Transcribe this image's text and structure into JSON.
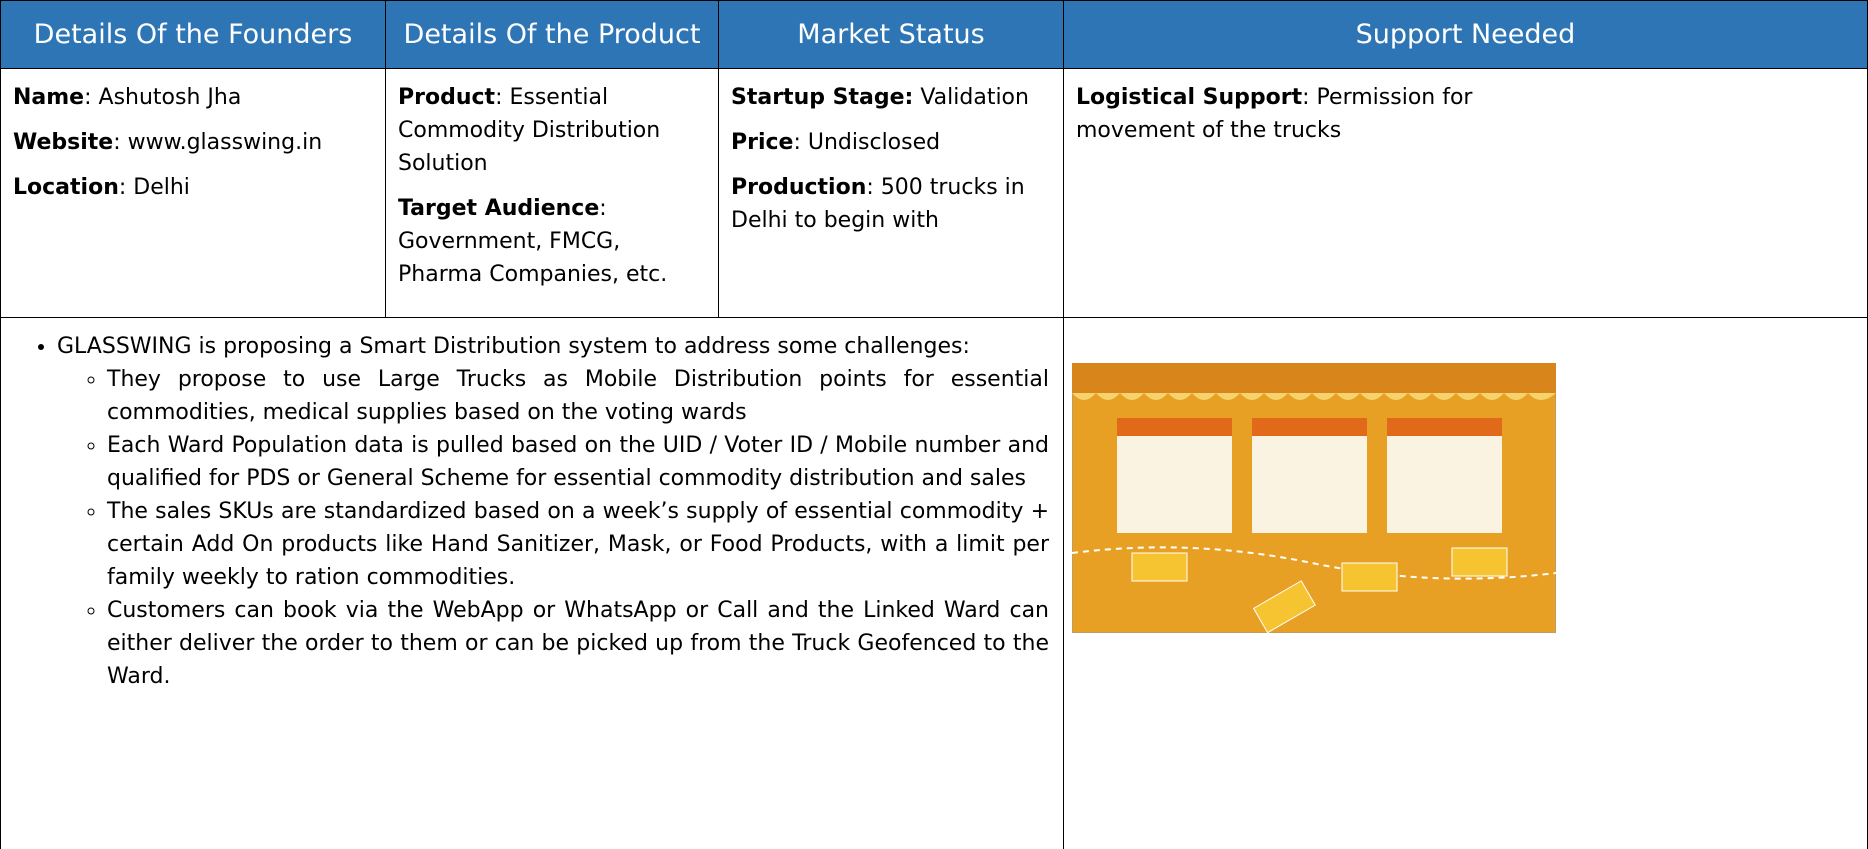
{
  "header": {
    "columns": [
      "Details Of the Founders",
      "Details Of the Product",
      "Market Status",
      "Support Needed"
    ]
  },
  "founders": [
    {
      "label": "Name",
      "value": ": Ashutosh Jha"
    },
    {
      "label": "Website",
      "value": ": www.glasswing.in"
    },
    {
      "label": "Location",
      "value": ": Delhi"
    }
  ],
  "product": [
    {
      "label": "Product",
      "value": ": Essential Commodity Distribution Solution"
    },
    {
      "label": "Target Audience",
      "value": ": Government, FMCG, Pharma Companies, etc."
    }
  ],
  "market": [
    {
      "label": "Startup Stage:",
      "value": " Validation"
    },
    {
      "label": "Price",
      "value": ": Undisclosed"
    },
    {
      "label": "Production",
      "value": ": 500 trucks in Delhi to begin with"
    }
  ],
  "support": [
    {
      "label": "Logistical Support",
      "value": ": Permission for movement of the trucks"
    }
  ],
  "description": {
    "intro": "GLASSWING is proposing a Smart Distribution system to address some challenges:",
    "points": [
      "They propose to use Large Trucks as Mobile Distribution points for essential commodities, medical supplies based on the voting wards",
      "Each Ward Population data is pulled based on the UID / Voter ID / Mobile number and qualified for PDS or General Scheme for essential commodity distribution and sales",
      "The sales SKUs are standardized based on a week’s supply of essential commodity + certain Add On products like Hand Sanitizer, Mask, or Food Products, with a limit per family weekly to ration commodities.",
      "Customers can book via the WebApp or WhatsApp or Call and the Linked Ward can either deliver the order to them or can be picked up from the Truck Geofenced to the Ward."
    ]
  }
}
